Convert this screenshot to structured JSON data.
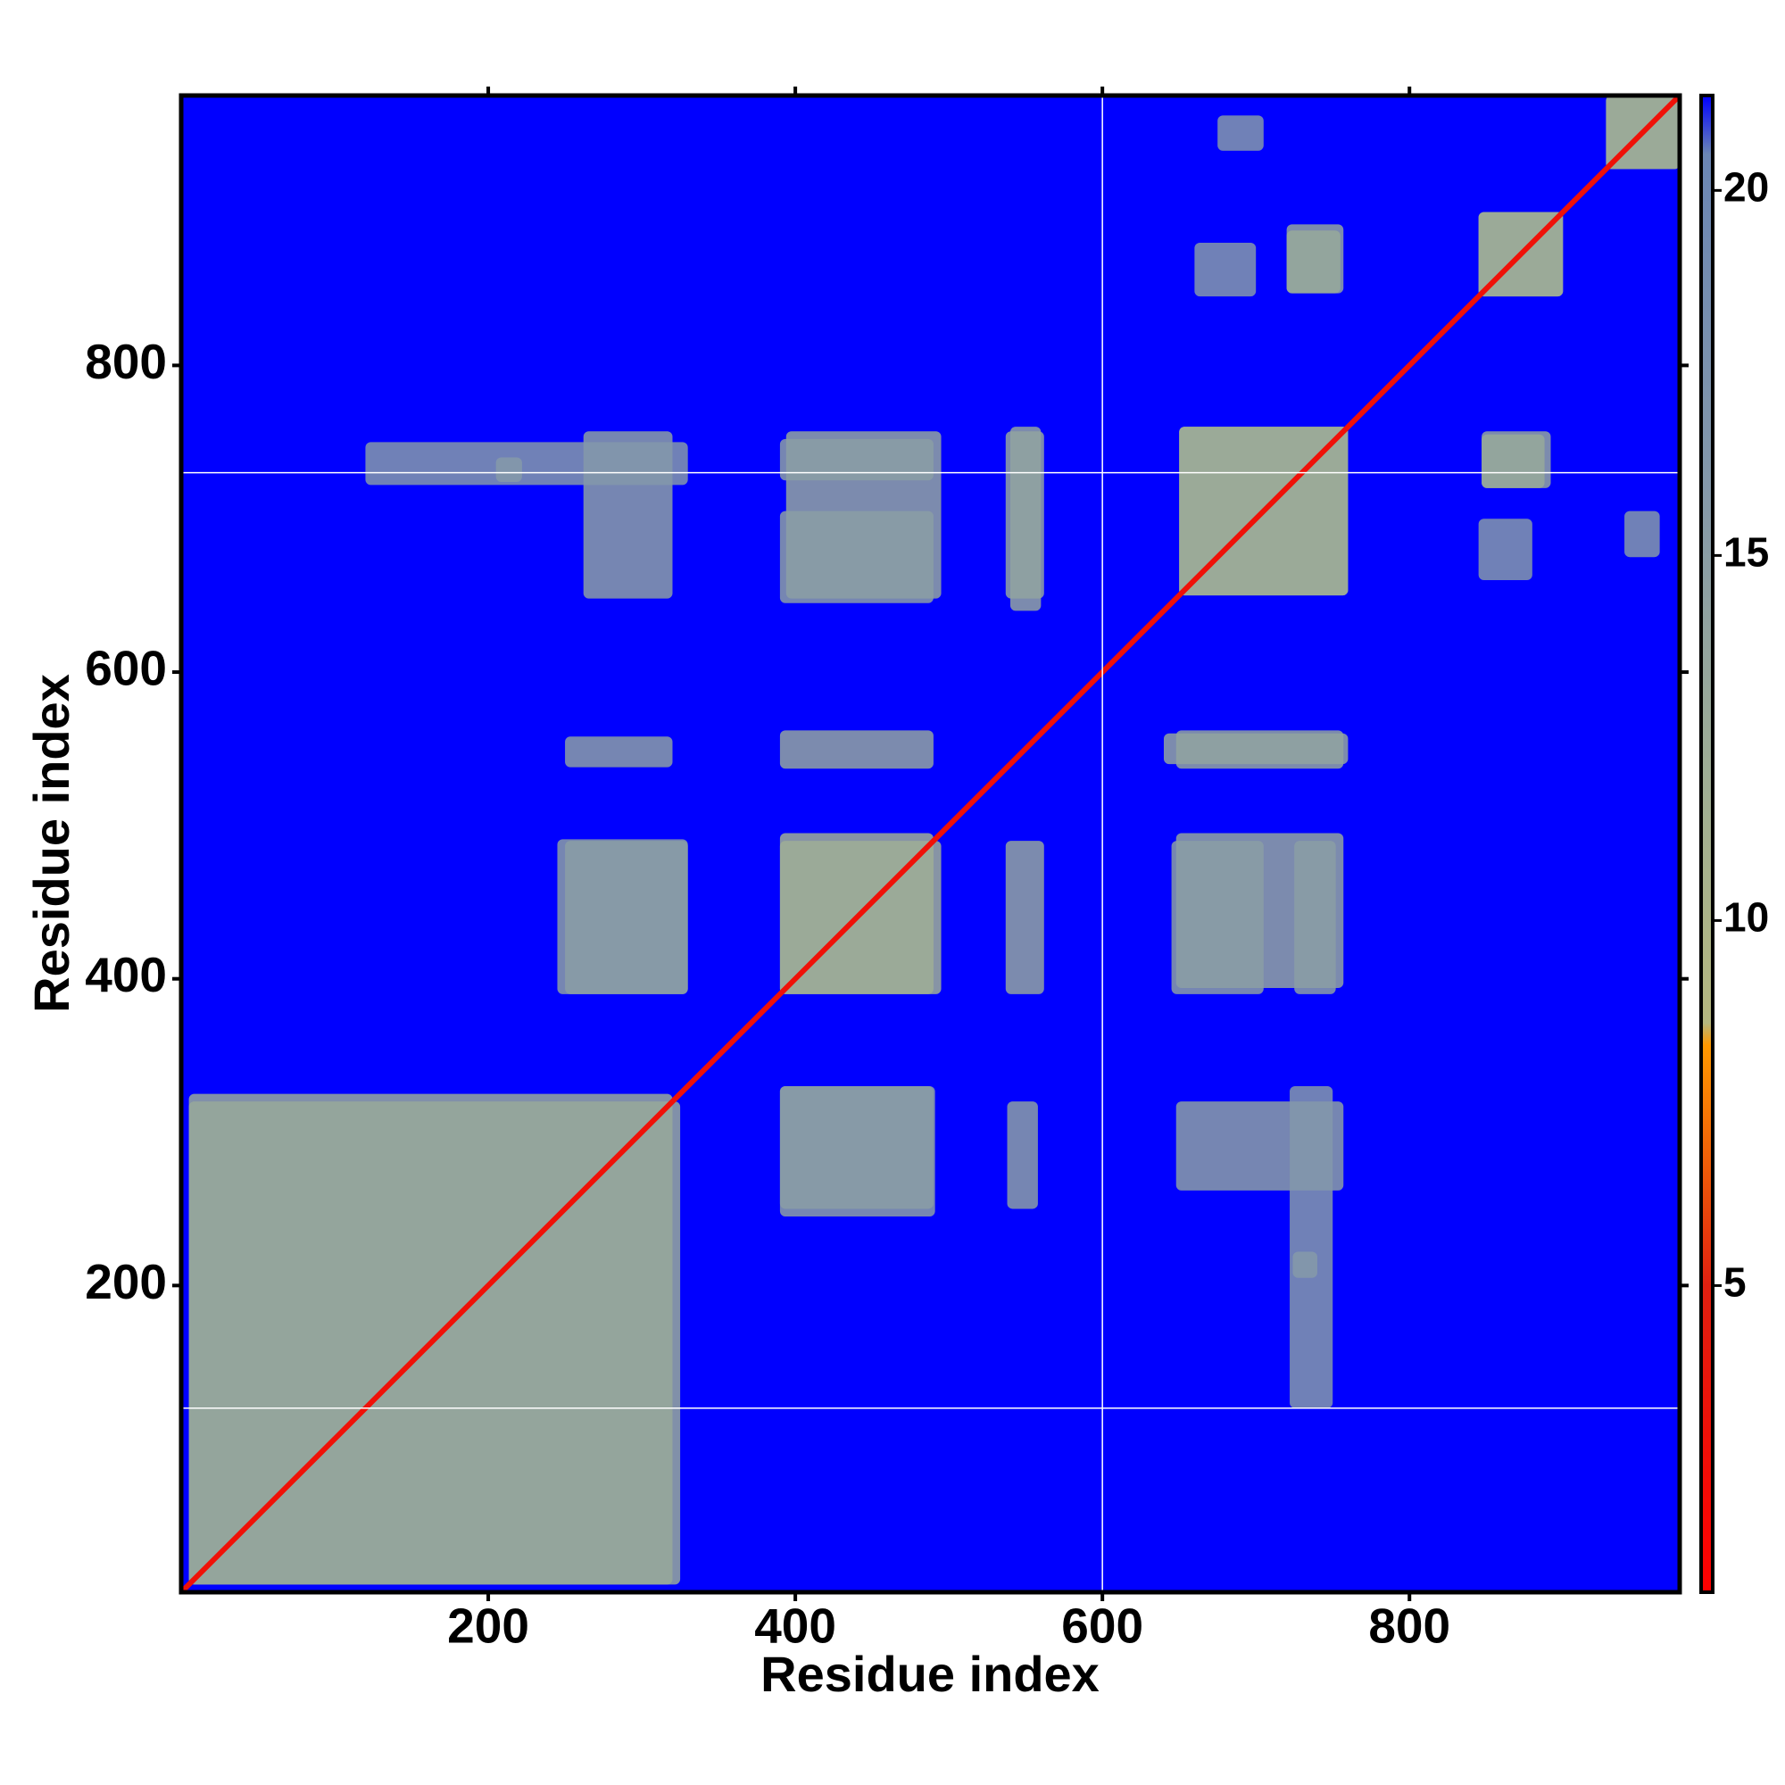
{
  "chart_data": {
    "type": "heatmap",
    "xlabel": "Residue index",
    "ylabel": "Residue index",
    "xlim": [
      0,
      976
    ],
    "ylim": [
      0,
      976
    ],
    "xticks": [
      200,
      400,
      600,
      800
    ],
    "yticks": [
      200,
      400,
      600,
      800
    ],
    "mirror_ticks": true,
    "background_value": 21.3,
    "diagonal_value": 3,
    "symmetric": true,
    "patches": [
      {
        "x": [
          5,
          325
        ],
        "y": [
          5,
          320
        ],
        "value": 13
      },
      {
        "x": [
          390,
          495
        ],
        "y": [
          390,
          490
        ],
        "value": 12
      },
      {
        "x": [
          650,
          760
        ],
        "y": [
          650,
          760
        ],
        "value": 12
      },
      {
        "x": [
          845,
          900
        ],
        "y": [
          845,
          900
        ],
        "value": 12
      },
      {
        "x": [
          928,
          976
        ],
        "y": [
          928,
          976
        ],
        "value": 12
      },
      {
        "x": [
          390,
          491
        ],
        "y": [
          245,
          330
        ],
        "value": 15
      },
      {
        "x": [
          538,
          558
        ],
        "y": [
          250,
          320
        ],
        "value": 15
      },
      {
        "x": [
          648,
          757
        ],
        "y": [
          394,
          495
        ],
        "value": 14
      },
      {
        "x": [
          648,
          757
        ],
        "y": [
          537,
          562
        ],
        "value": 14
      },
      {
        "x": [
          648,
          757
        ],
        "y": [
          262,
          320
        ],
        "value": 15
      },
      {
        "x": [
          724,
          740
        ],
        "y": [
          205,
          222
        ],
        "value": 14
      },
      {
        "x": [
          720,
          757
        ],
        "y": [
          847,
          892
        ],
        "value": 14
      },
      {
        "x": [
          847,
          888
        ],
        "y": [
          720,
          755
        ],
        "value": 13
      },
      {
        "x": [
          845,
          880
        ],
        "y": [
          660,
          700
        ],
        "value": 16
      },
      {
        "x": [
          675,
          705
        ],
        "y": [
          940,
          963
        ],
        "value": 16
      },
      {
        "x": [
          390,
          490
        ],
        "y": [
          645,
          705
        ],
        "value": 15
      },
      {
        "x": [
          390,
          490
        ],
        "y": [
          725,
          752
        ],
        "value": 15
      },
      {
        "x": [
          540,
          560
        ],
        "y": [
          640,
          760
        ],
        "value": 14
      },
      {
        "x": [
          390,
          490
        ],
        "y": [
          537,
          562
        ],
        "value": 14
      },
      {
        "x": [
          250,
          330
        ],
        "y": [
          390,
          490
        ],
        "value": 15
      },
      {
        "x": [
          120,
          330
        ],
        "y": [
          722,
          750
        ],
        "value": 16
      }
    ],
    "reference_lines": {
      "x": [
        600
      ],
      "y": [
        120,
        730
      ],
      "color": "#ffffff"
    },
    "colorbar": {
      "lim": [
        0.8,
        21.3
      ],
      "ticks": [
        5,
        10,
        15,
        20
      ],
      "scale": [
        [
          0.8,
          "#ff0000"
        ],
        [
          5,
          "#e02010"
        ],
        [
          8.3,
          "#ff9900"
        ],
        [
          8.6,
          "#b5b77f"
        ],
        [
          12,
          "#9fae95"
        ],
        [
          16,
          "#8498aa"
        ],
        [
          20.5,
          "#6b86b4"
        ],
        [
          21.3,
          "#0000ff"
        ]
      ]
    }
  }
}
